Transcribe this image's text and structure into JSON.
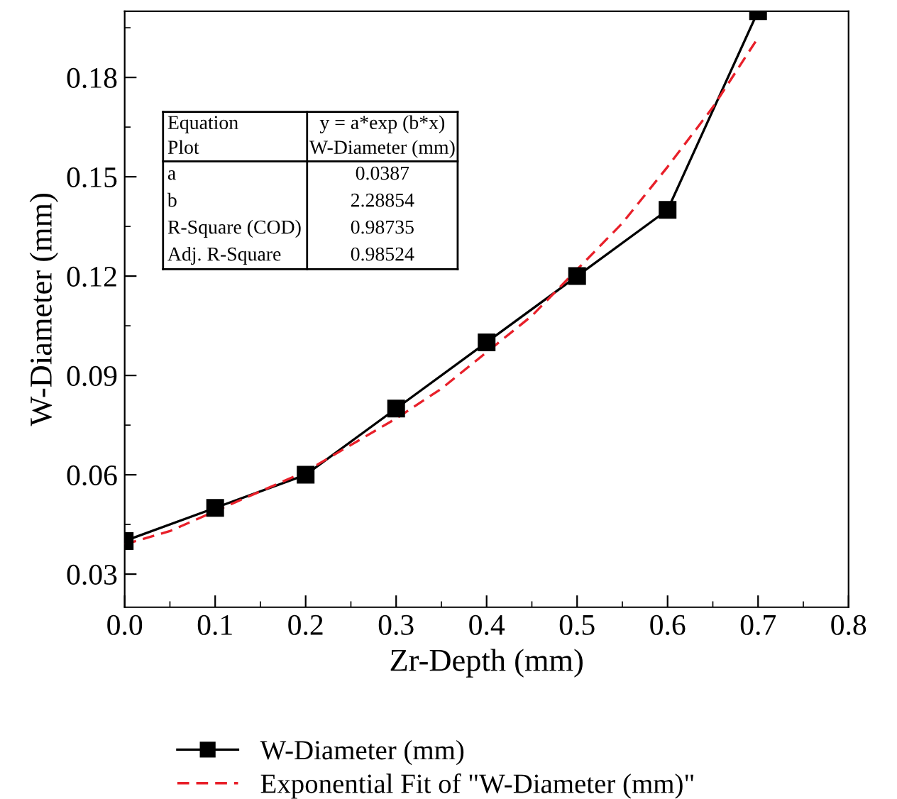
{
  "chart_data": {
    "type": "line",
    "xlabel": "Zr-Depth (mm)",
    "ylabel": "W-Diameter (mm)",
    "xlim": [
      0.0,
      0.8
    ],
    "xticks": [
      {
        "value": 0,
        "label": "0.0"
      },
      0.1,
      0.2,
      0.3,
      0.4,
      0.5,
      0.6,
      0.7,
      0.8
    ],
    "ylim": [
      0.02,
      0.2
    ],
    "yticks": [
      0.03,
      0.06,
      0.09,
      0.12,
      0.15,
      0.18
    ],
    "grid": false,
    "legend": "bottom",
    "series": [
      {
        "name": "W-Diameter (mm)",
        "color": "#000000",
        "marker": "square",
        "line_style": "solid",
        "x": [
          0.0,
          0.1,
          0.2,
          0.3,
          0.4,
          0.5,
          0.6,
          0.7
        ],
        "values": [
          0.04,
          0.05,
          0.06,
          0.08,
          0.1,
          0.12,
          0.14,
          0.2
        ]
      },
      {
        "name": "Exponential Fit of \"W-Diameter (mm)\"",
        "color": "#e8202a",
        "marker": "none",
        "line_style": "dashed",
        "x": [
          0.0,
          0.05,
          0.1,
          0.15,
          0.2,
          0.25,
          0.3,
          0.35,
          0.4,
          0.45,
          0.5,
          0.55,
          0.6,
          0.65,
          0.7
        ],
        "values": [
          0.039,
          0.043,
          0.049,
          0.055,
          0.061,
          0.069,
          0.077,
          0.086,
          0.097,
          0.108,
          0.122,
          0.136,
          0.153,
          0.171,
          0.192
        ]
      }
    ],
    "annotations": [
      "Equation",
      "y = a*exp (b*x)",
      "Plot",
      "W-Diameter (mm)",
      "a",
      "0.0387",
      "b",
      "2.28854",
      "R-Square (COD)",
      "0.98735",
      "Adj. R-Square",
      "0.98524"
    ]
  }
}
